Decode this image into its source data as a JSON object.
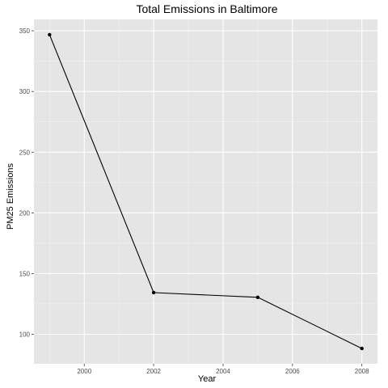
{
  "chart_data": {
    "type": "line",
    "title": "Total Emissions in Baltimore",
    "xlabel": "Year",
    "ylabel": "PM25 Emissions",
    "x": [
      1999,
      2002,
      2005,
      2008
    ],
    "values": [
      346.82,
      134.31,
      130.43,
      88.28
    ],
    "xlim": [
      1998.55,
      2008.45
    ],
    "ylim": [
      75.7,
      359.4
    ],
    "xticks": [
      2000,
      2002,
      2004,
      2006,
      2008
    ],
    "yticks": [
      100,
      150,
      200,
      250,
      300,
      350
    ],
    "grid": true,
    "legend": "none",
    "colors": {
      "panel": "#e5e5e5",
      "grid_major": "#ffffff",
      "grid_minor": "#f2f2f2",
      "line": "#000000",
      "point": "#000000",
      "tick_label": "#4d4d4d"
    }
  }
}
